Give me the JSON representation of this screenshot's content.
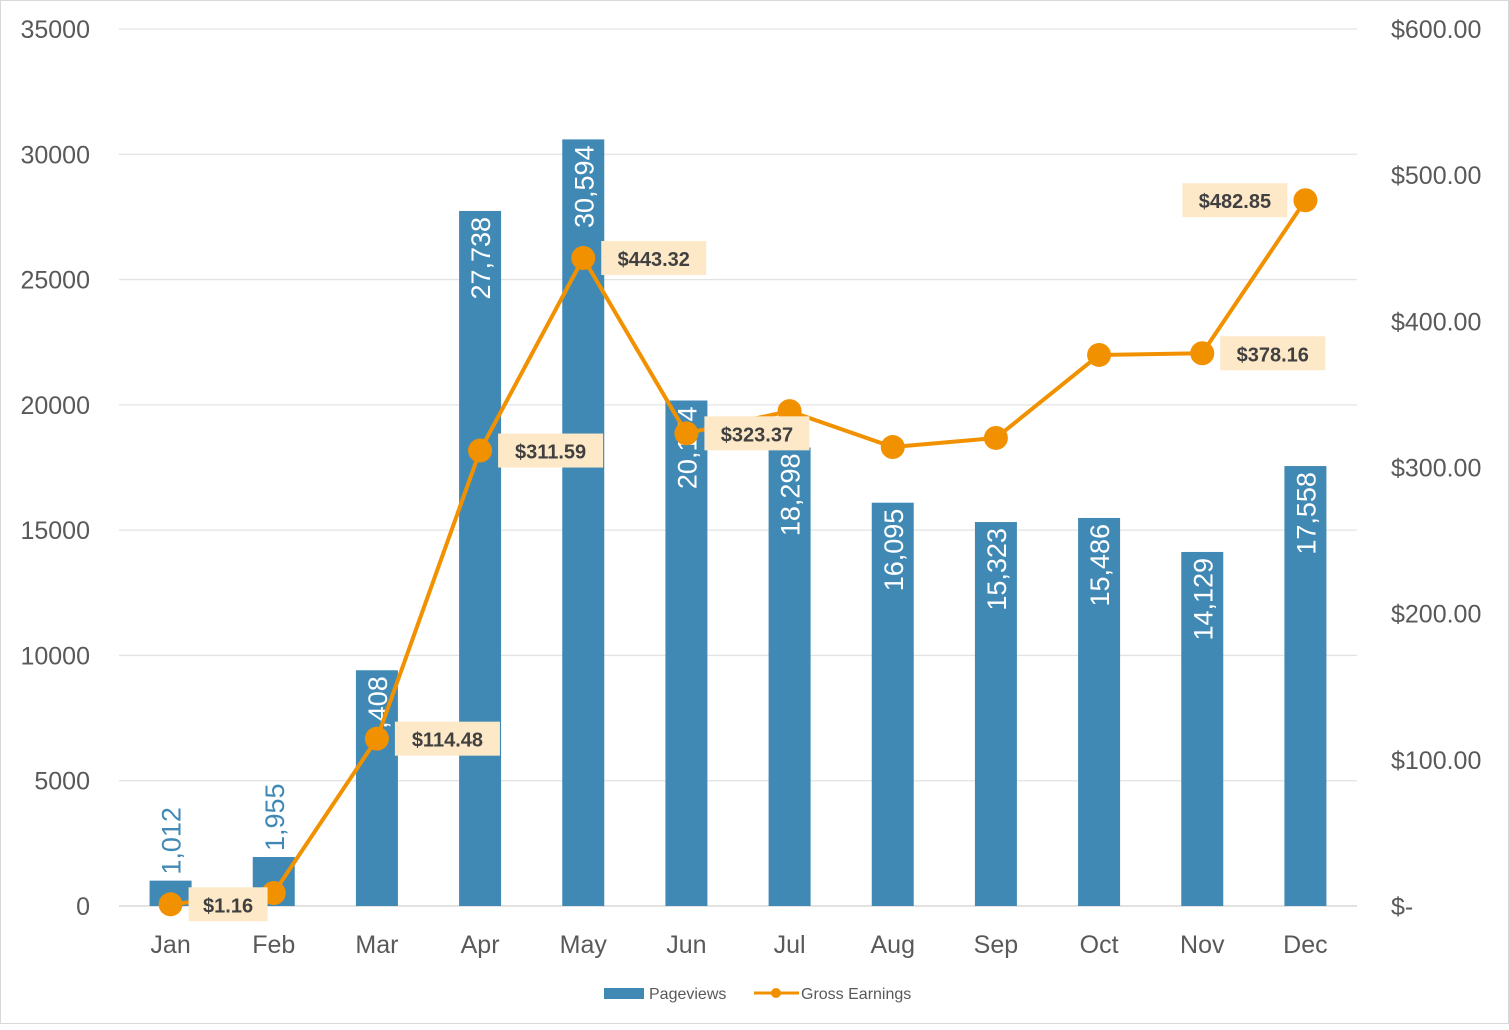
{
  "chart_data": {
    "type": "bar+line",
    "title": "",
    "categories": [
      "Jan",
      "Feb",
      "Mar",
      "Apr",
      "May",
      "Jun",
      "Jul",
      "Aug",
      "Sep",
      "Oct",
      "Nov",
      "Dec"
    ],
    "series": [
      {
        "name": "Pageviews",
        "type": "bar",
        "axis": "left",
        "color": "#4189b5",
        "values": [
          1012,
          1955,
          9408,
          27738,
          30594,
          20174,
          18298,
          16095,
          15323,
          15486,
          14129,
          17558
        ],
        "labels": [
          "1,012",
          "1,955",
          "9,408",
          "27,738",
          "30,594",
          "20,174",
          "18,298",
          "16,095",
          "15,323",
          "15,486",
          "14,129",
          "17,558"
        ]
      },
      {
        "name": "Gross Earnings",
        "type": "line",
        "axis": "right",
        "color": "#f29100",
        "values": [
          1.16,
          8.9,
          114.48,
          311.59,
          443.32,
          323.37,
          338.6,
          314.0,
          320.2,
          377.0,
          378.16,
          482.85
        ],
        "labels": [
          "$1.16",
          null,
          "$114.48",
          "$311.59",
          "$443.32",
          "$323.37",
          null,
          null,
          null,
          null,
          "$378.16",
          "$482.85"
        ]
      }
    ],
    "y_left": {
      "range": [
        0,
        35000
      ],
      "ticks": [
        "0",
        "5000",
        "10000",
        "15000",
        "20000",
        "25000",
        "30000",
        "35000"
      ]
    },
    "y_right": {
      "range": [
        0,
        600
      ],
      "ticks": [
        "$-",
        "$100.00",
        "$200.00",
        "$300.00",
        "$400.00",
        "$500.00",
        "$600.00"
      ]
    },
    "grid": true,
    "legend": {
      "placement": "bottom",
      "entries": [
        "Pageviews",
        "Gross Earnings"
      ]
    },
    "label_bg": "#fde9c8"
  }
}
